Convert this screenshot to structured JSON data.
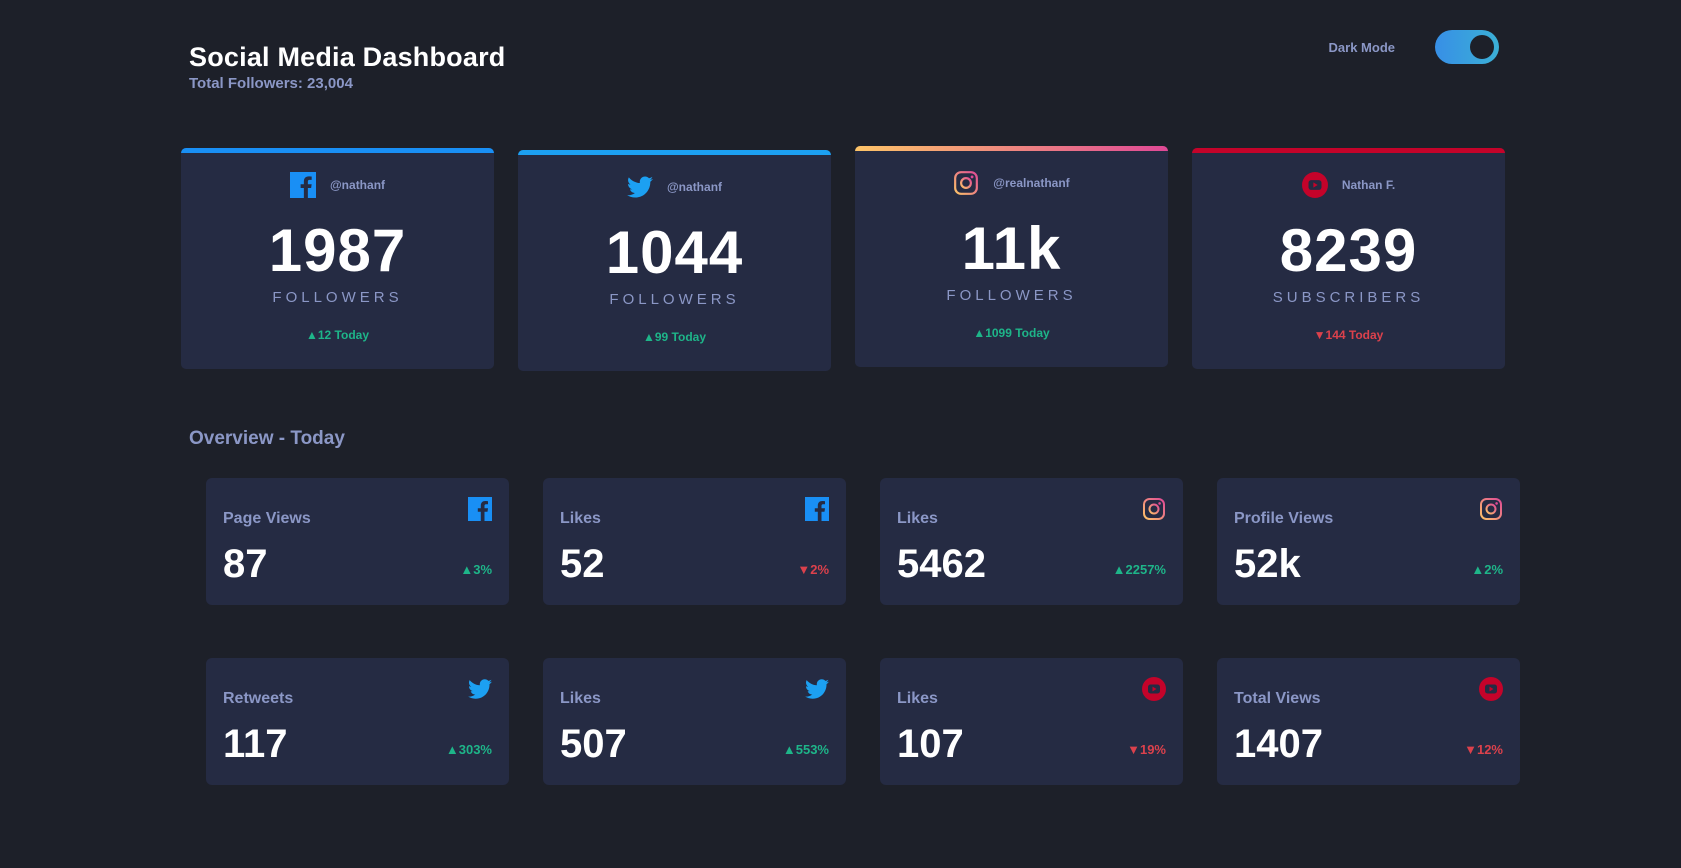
{
  "header": {
    "title": "Social Media Dashboard",
    "total_followers": "Total Followers: 23,004",
    "mode_label": "Dark Mode"
  },
  "colors": {
    "facebook": "#198ff5",
    "twitter": "#1ca0f2",
    "instagram_start": "#fdc468",
    "instagram_end": "#df4996",
    "youtube": "#c4032a",
    "up": "#1eb589",
    "down": "#dc414c"
  },
  "cards": [
    {
      "network": "facebook",
      "icon": "facebook-icon",
      "handle": "@nathanf",
      "count": "1987",
      "unit": "FOLLOWERS",
      "change": "▲12 Today",
      "trend": "up"
    },
    {
      "network": "twitter",
      "icon": "twitter-icon",
      "handle": "@nathanf",
      "count": "1044",
      "unit": "FOLLOWERS",
      "change": "▲99 Today",
      "trend": "up"
    },
    {
      "network": "instagram",
      "icon": "instagram-icon",
      "handle": "@realnathanf",
      "count": "11k",
      "unit": "FOLLOWERS",
      "change": "▲1099 Today",
      "trend": "up"
    },
    {
      "network": "youtube",
      "icon": "youtube-icon",
      "handle": "Nathan F.",
      "count": "8239",
      "unit": "SUBSCRIBERS",
      "change": "▼144 Today",
      "trend": "down"
    }
  ],
  "overview": {
    "title": "Overview - Today",
    "tiles": [
      {
        "label": "Page Views",
        "network": "facebook",
        "value": "87",
        "change": "▲3%",
        "trend": "up"
      },
      {
        "label": "Likes",
        "network": "facebook",
        "value": "52",
        "change": "▼2%",
        "trend": "down"
      },
      {
        "label": "Likes",
        "network": "instagram",
        "value": "5462",
        "change": "▲2257%",
        "trend": "up"
      },
      {
        "label": "Profile Views",
        "network": "instagram",
        "value": "52k",
        "change": "▲2%",
        "trend": "up"
      },
      {
        "label": "Retweets",
        "network": "twitter",
        "value": "117",
        "change": "▲303%",
        "trend": "up"
      },
      {
        "label": "Likes",
        "network": "twitter",
        "value": "507",
        "change": "▲553%",
        "trend": "up"
      },
      {
        "label": "Likes",
        "network": "youtube",
        "value": "107",
        "change": "▼19%",
        "trend": "down"
      },
      {
        "label": "Total Views",
        "network": "youtube",
        "value": "1407",
        "change": "▼12%",
        "trend": "down"
      }
    ]
  }
}
